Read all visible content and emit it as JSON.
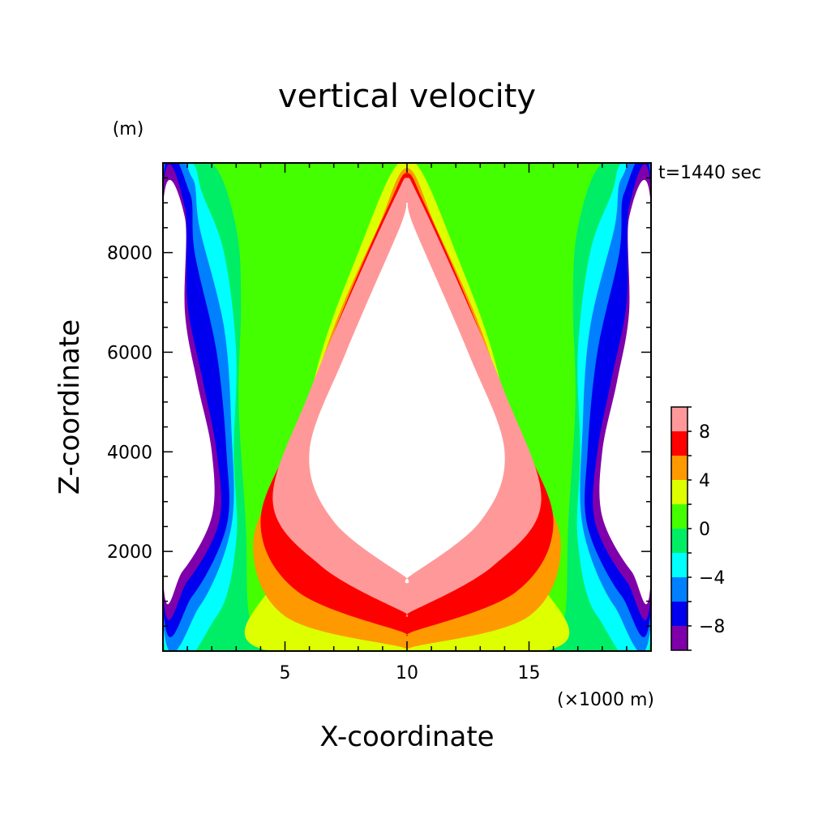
{
  "chart_data": {
    "type": "heatmap",
    "subtype": "filled-contour",
    "title": "vertical velocity",
    "xlabel": "X-coordinate",
    "ylabel": "Z-coordinate",
    "x_unit": "(×1000 m)",
    "y_unit": "(m)",
    "time_label": "t=1440 sec",
    "xlim": [
      0,
      20
    ],
    "ylim": [
      0,
      9800
    ],
    "x_ticks": [
      5,
      10,
      15
    ],
    "y_ticks": [
      2000,
      4000,
      6000,
      8000
    ],
    "x_minor_step": 1,
    "y_minor_step": 500,
    "colorbar": {
      "levels": [
        -10,
        -8,
        -6,
        -4,
        -2,
        0,
        2,
        4,
        6,
        8,
        10
      ],
      "tick_labels": [
        {
          "value": -8,
          "text": "−8"
        },
        {
          "value": -4,
          "text": "−4"
        },
        {
          "value": 0,
          "text": "0"
        },
        {
          "value": 4,
          "text": "4"
        },
        {
          "value": 8,
          "text": "8"
        }
      ],
      "colors": [
        "#7f00aa",
        "#0000ee",
        "#0080ff",
        "#00ffff",
        "#00ee66",
        "#44ff00",
        "#ddff00",
        "#ff9900",
        "#ff0000",
        "#ff9999"
      ],
      "above_max_color": "#ffffff",
      "below_min_color": "#ffffff"
    },
    "contours": {
      "pos_2": [
        [
          4,
          50
        ],
        [
          5,
          1800
        ],
        [
          5.5,
          3800
        ],
        [
          6.5,
          6000
        ],
        [
          8,
          8000
        ],
        [
          9.5,
          9700
        ],
        [
          10.5,
          9700
        ],
        [
          12,
          8000
        ],
        [
          13.5,
          6000
        ],
        [
          14.5,
          3800
        ],
        [
          15,
          1800
        ],
        [
          16,
          50
        ]
      ],
      "pos_4": [
        [
          9.6,
          100
        ],
        [
          5,
          700
        ],
        [
          3.7,
          2200
        ],
        [
          5.3,
          4000
        ],
        [
          7,
          6500
        ],
        [
          8.8,
          8500
        ],
        [
          10,
          9700
        ],
        [
          11.2,
          8500
        ],
        [
          13,
          6500
        ],
        [
          14.7,
          4000
        ],
        [
          16.3,
          2200
        ],
        [
          15,
          700
        ],
        [
          10.4,
          100
        ]
      ],
      "pos_6": [
        [
          9.7,
          400
        ],
        [
          5.5,
          1200
        ],
        [
          4,
          2600
        ],
        [
          5.5,
          4500
        ],
        [
          7.5,
          7000
        ],
        [
          9.3,
          9000
        ],
        [
          10,
          9600
        ],
        [
          10.7,
          9000
        ],
        [
          12.5,
          7000
        ],
        [
          14.5,
          4500
        ],
        [
          16,
          2600
        ],
        [
          14.5,
          1200
        ],
        [
          10.3,
          400
        ]
      ],
      "pos_8": [
        [
          9.8,
          800
        ],
        [
          6.5,
          1700
        ],
        [
          4.5,
          3000
        ],
        [
          6,
          5200
        ],
        [
          8,
          7500
        ],
        [
          9.6,
          9200
        ],
        [
          10,
          9500
        ],
        [
          10.4,
          9200
        ],
        [
          12,
          7500
        ],
        [
          14,
          5200
        ],
        [
          15.5,
          3000
        ],
        [
          13.5,
          1700
        ],
        [
          10.2,
          800
        ]
      ],
      "pos_10": [
        [
          9.9,
          1500
        ],
        [
          7,
          2600
        ],
        [
          6,
          4000
        ],
        [
          7.5,
          6000
        ],
        [
          9.7,
          8500
        ],
        [
          10,
          9000
        ],
        [
          10.3,
          8500
        ],
        [
          12.5,
          6000
        ],
        [
          14,
          4000
        ],
        [
          13,
          2600
        ],
        [
          10.1,
          1500
        ]
      ],
      "neg_2_left": [
        [
          0,
          9800
        ],
        [
          2,
          9800
        ],
        [
          3,
          8500
        ],
        [
          3.2,
          7000
        ],
        [
          3.1,
          5000
        ],
        [
          3.4,
          2500
        ],
        [
          3.5,
          800
        ],
        [
          4,
          0
        ],
        [
          0,
          0
        ]
      ],
      "neg_4_left": [
        [
          0,
          9800
        ],
        [
          1.2,
          9800
        ],
        [
          1.6,
          9200
        ],
        [
          2.5,
          8000
        ],
        [
          3,
          6000
        ],
        [
          2.9,
          4000
        ],
        [
          3,
          2200
        ],
        [
          2.2,
          700
        ],
        [
          0,
          300
        ]
      ],
      "neg_6_left": [
        [
          0,
          9600
        ],
        [
          1.2,
          9500
        ],
        [
          1.5,
          8500
        ],
        [
          2.5,
          6500
        ],
        [
          2.8,
          4500
        ],
        [
          2.8,
          2500
        ],
        [
          1.5,
          900
        ],
        [
          0,
          600
        ]
      ],
      "neg_8_left": [
        [
          0,
          9400
        ],
        [
          1.1,
          9200
        ],
        [
          1.3,
          8000
        ],
        [
          2.2,
          6000
        ],
        [
          2.6,
          4000
        ],
        [
          2.6,
          2500
        ],
        [
          1.2,
          1100
        ],
        [
          0,
          900
        ]
      ],
      "neg_10_left": [
        [
          0,
          9200
        ],
        [
          0.9,
          8900
        ],
        [
          1.0,
          7000
        ],
        [
          1.6,
          5500
        ],
        [
          2.2,
          4000
        ],
        [
          2.3,
          2600
        ],
        [
          1,
          1400
        ],
        [
          0,
          1200
        ]
      ]
    }
  }
}
